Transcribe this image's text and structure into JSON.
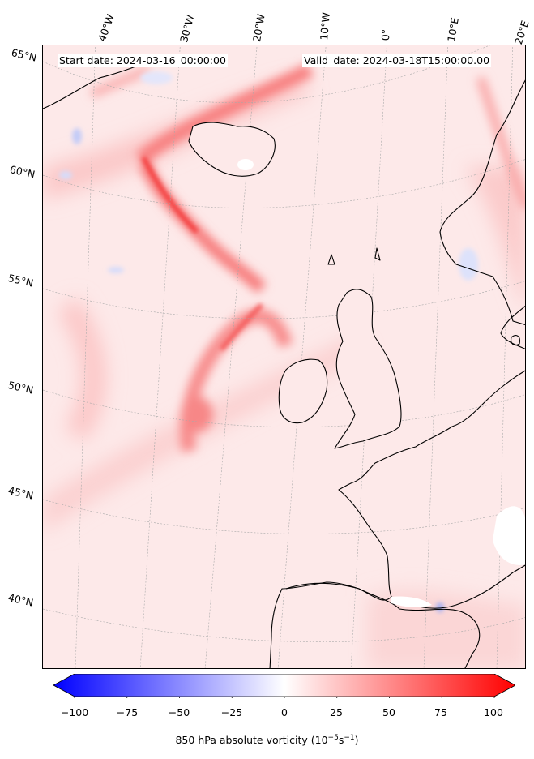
{
  "map": {
    "start_date": "Start date: 2024-03-16_00:00:00",
    "valid_date": "Valid_date: 2024-03-18T15:00:00.00",
    "longitude_labels": [
      "40°W",
      "30°W",
      "20°W",
      "10°W",
      "0°",
      "10°E",
      "20°E"
    ],
    "latitude_labels": [
      "65°N",
      "60°N",
      "55°N",
      "50°N",
      "45°N",
      "40°N"
    ]
  },
  "colorbar": {
    "ticks": [
      "−100",
      "−75",
      "−50",
      "−25",
      "0",
      "25",
      "50",
      "75",
      "100"
    ],
    "label": "850 hPa absolute vorticity (10",
    "label_exp1": "−5",
    "label_mid": "s",
    "label_exp2": "−1",
    "label_end": ")",
    "cmap_neg": "#0000ff",
    "cmap_zero": "#ffffff",
    "cmap_pos": "#ff0000"
  }
}
